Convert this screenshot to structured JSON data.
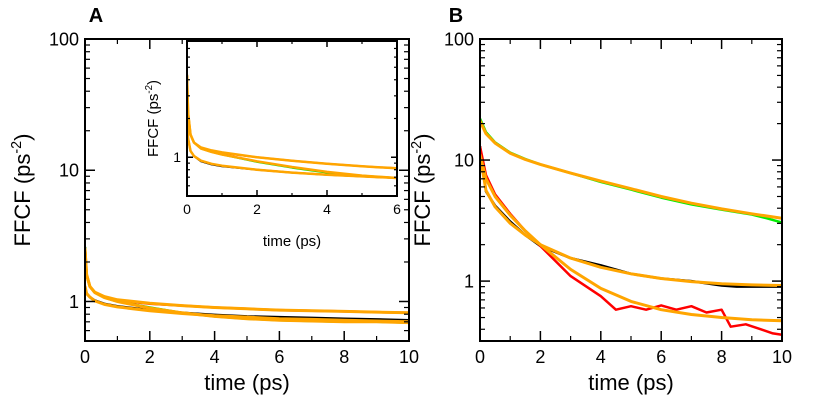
{
  "chart_data": [
    {
      "type": "line",
      "panel_label": "A",
      "xlabel": "time (ps)",
      "ylabel_main": "FFCF (ps",
      "ylabel_sup": "-2",
      "ylabel_close": ")",
      "yscale": "log",
      "xlim": [
        0,
        10
      ],
      "ylim": [
        0.5,
        100
      ],
      "xticks": [
        "0",
        "2",
        "4",
        "6",
        "8",
        "10"
      ],
      "yticks": [
        "1",
        "10",
        "100"
      ],
      "series": [
        {
          "color": "#ff0000",
          "x": [
            0,
            0.05,
            0.15,
            0.3,
            0.6,
            1,
            2,
            3,
            4,
            5,
            6,
            7,
            8,
            9,
            10
          ],
          "y": [
            2.6,
            1.6,
            1.3,
            1.17,
            1.08,
            1.02,
            0.96,
            0.93,
            0.9,
            0.88,
            0.86,
            0.85,
            0.84,
            0.83,
            0.82
          ]
        },
        {
          "color": "#00dd00",
          "x": [
            0,
            0.05,
            0.15,
            0.3,
            0.6,
            1,
            2,
            3,
            4,
            5,
            6,
            7,
            8,
            9,
            10
          ],
          "y": [
            2.6,
            1.6,
            1.3,
            1.17,
            1.07,
            1.0,
            0.9,
            0.82,
            0.77,
            0.74,
            0.72,
            0.71,
            0.7,
            0.7,
            0.69
          ]
        },
        {
          "color": "#000000",
          "x": [
            0,
            0.05,
            0.15,
            0.3,
            0.6,
            1,
            2,
            3,
            4,
            5,
            6,
            7,
            8,
            9,
            10
          ],
          "y": [
            1.3,
            1.15,
            1.08,
            1.02,
            0.96,
            0.92,
            0.86,
            0.82,
            0.79,
            0.77,
            0.76,
            0.75,
            0.74,
            0.73,
            0.72
          ]
        }
      ],
      "fits": [
        {
          "color": "#ffa500",
          "x": [
            0,
            0.05,
            0.15,
            0.3,
            0.6,
            1,
            2,
            3,
            4,
            5,
            6,
            7,
            8,
            9,
            10
          ],
          "y": [
            2.5,
            1.6,
            1.3,
            1.18,
            1.09,
            1.03,
            0.97,
            0.93,
            0.9,
            0.88,
            0.86,
            0.85,
            0.84,
            0.83,
            0.82
          ]
        },
        {
          "color": "#ffa500",
          "x": [
            0,
            0.05,
            0.15,
            0.3,
            0.6,
            1,
            2,
            3,
            4,
            5,
            6,
            7,
            8,
            9,
            10
          ],
          "y": [
            2.5,
            1.6,
            1.3,
            1.17,
            1.07,
            1.0,
            0.89,
            0.82,
            0.77,
            0.74,
            0.72,
            0.71,
            0.7,
            0.7,
            0.69
          ]
        },
        {
          "color": "#ffa500",
          "x": [
            0,
            0.05,
            0.15,
            0.3,
            0.6,
            1,
            2,
            3,
            4,
            5,
            6,
            7,
            8,
            9,
            10
          ],
          "y": [
            1.3,
            1.15,
            1.08,
            1.01,
            0.95,
            0.91,
            0.85,
            0.81,
            0.78,
            0.76,
            0.74,
            0.73,
            0.72,
            0.71,
            0.7
          ]
        }
      ]
    },
    {
      "type": "line",
      "panel_label": "",
      "inset": true,
      "xlabel": "time (ps)",
      "ylabel_main": "FFCF (ps",
      "ylabel_sup": "-2",
      "ylabel_close": ")",
      "yscale": "log",
      "xlim": [
        0,
        6
      ],
      "ylim": [
        0.5,
        8
      ],
      "xticks": [
        "0",
        "2",
        "4",
        "6"
      ],
      "yticks": [
        "1"
      ],
      "series": [
        {
          "color": "#ff0000",
          "x": [
            0,
            0.03,
            0.1,
            0.2,
            0.4,
            0.7,
            1,
            2,
            3,
            4,
            5,
            6
          ],
          "y": [
            4.5,
            2.2,
            1.5,
            1.3,
            1.18,
            1.12,
            1.08,
            1.0,
            0.94,
            0.89,
            0.85,
            0.82
          ]
        },
        {
          "color": "#00dd00",
          "x": [
            0,
            0.03,
            0.1,
            0.2,
            0.4,
            0.7,
            1,
            2,
            3,
            4,
            5,
            6
          ],
          "y": [
            4.5,
            2.2,
            1.5,
            1.3,
            1.17,
            1.1,
            1.05,
            0.92,
            0.83,
            0.76,
            0.72,
            0.69
          ]
        },
        {
          "color": "#000000",
          "x": [
            0,
            0.03,
            0.1,
            0.2,
            0.4,
            0.7,
            1,
            2,
            3,
            4,
            5,
            6
          ],
          "y": [
            2.0,
            1.4,
            1.12,
            1.02,
            0.93,
            0.88,
            0.85,
            0.8,
            0.76,
            0.73,
            0.71,
            0.69
          ]
        }
      ],
      "fits": [
        {
          "color": "#ffa500",
          "x": [
            0,
            0.03,
            0.1,
            0.2,
            0.4,
            0.7,
            1,
            2,
            3,
            4,
            5,
            6
          ],
          "y": [
            4.3,
            2.2,
            1.5,
            1.3,
            1.19,
            1.13,
            1.09,
            1.0,
            0.94,
            0.89,
            0.85,
            0.82
          ]
        },
        {
          "color": "#ffa500",
          "x": [
            0,
            0.03,
            0.1,
            0.2,
            0.4,
            0.7,
            1,
            2,
            3,
            4,
            5,
            6
          ],
          "y": [
            4.3,
            2.2,
            1.5,
            1.3,
            1.17,
            1.1,
            1.05,
            0.93,
            0.84,
            0.77,
            0.72,
            0.69
          ]
        },
        {
          "color": "#ffa500",
          "x": [
            0,
            0.03,
            0.1,
            0.2,
            0.4,
            0.7,
            1,
            2,
            3,
            4,
            5,
            6
          ],
          "y": [
            2.0,
            1.4,
            1.12,
            1.02,
            0.94,
            0.89,
            0.86,
            0.8,
            0.76,
            0.73,
            0.71,
            0.69
          ]
        }
      ]
    },
    {
      "type": "line",
      "panel_label": "B",
      "xlabel": "time (ps)",
      "ylabel_main": "FFCF (ps",
      "ylabel_sup": "-2",
      "ylabel_close": ")",
      "yscale": "log",
      "xlim": [
        0,
        10
      ],
      "ylim": [
        0.32,
        100
      ],
      "xticks": [
        "0",
        "2",
        "4",
        "6",
        "8",
        "10"
      ],
      "yticks": [
        "1",
        "10",
        "100"
      ],
      "series": [
        {
          "color": "#00ee00",
          "x": [
            0,
            0.2,
            0.5,
            1,
            1.5,
            2,
            3,
            4,
            5,
            6,
            7,
            8,
            9,
            9.5,
            10
          ],
          "y": [
            22,
            17,
            14,
            11.5,
            10.2,
            9.2,
            7.8,
            6.6,
            5.7,
            4.9,
            4.3,
            3.9,
            3.55,
            3.3,
            3.05
          ]
        },
        {
          "color": "#000000",
          "x": [
            0,
            0.2,
            0.5,
            1,
            1.5,
            2,
            3,
            4,
            5,
            6,
            7,
            8,
            8.5,
            9,
            10
          ],
          "y": [
            13,
            5.5,
            4.2,
            3.1,
            2.4,
            1.95,
            1.55,
            1.35,
            1.15,
            1.05,
            1.0,
            0.92,
            0.9,
            0.9,
            0.9
          ]
        },
        {
          "color": "#ff0000",
          "x": [
            0,
            0.2,
            0.5,
            1,
            1.5,
            2,
            3,
            4,
            4.5,
            5,
            5.5,
            6,
            6.5,
            7,
            7.5,
            8,
            8.3,
            8.8,
            9.3,
            9.7,
            10
          ],
          "y": [
            13,
            7.5,
            5.2,
            3.6,
            2.6,
            1.95,
            1.1,
            0.75,
            0.58,
            0.62,
            0.58,
            0.63,
            0.58,
            0.62,
            0.55,
            0.58,
            0.42,
            0.44,
            0.4,
            0.37,
            0.36
          ]
        }
      ],
      "fits": [
        {
          "color": "#ffa500",
          "x": [
            0,
            0.2,
            0.5,
            1,
            1.5,
            2,
            3,
            4,
            5,
            6,
            7,
            8,
            9,
            10
          ],
          "y": [
            21,
            16.5,
            13.8,
            11.4,
            10.1,
            9.2,
            7.8,
            6.7,
            5.8,
            5.0,
            4.4,
            3.95,
            3.6,
            3.3
          ]
        },
        {
          "color": "#ffa500",
          "x": [
            0,
            0.2,
            0.5,
            1,
            1.5,
            2,
            3,
            4,
            5,
            6,
            7,
            8,
            9,
            10
          ],
          "y": [
            11,
            5.6,
            4.1,
            3.0,
            2.4,
            2.0,
            1.55,
            1.3,
            1.15,
            1.05,
            0.99,
            0.95,
            0.93,
            0.92
          ]
        },
        {
          "color": "#ffa500",
          "x": [
            0,
            0.2,
            0.5,
            1,
            1.5,
            2,
            3,
            4,
            5,
            6,
            7,
            8,
            9,
            10
          ],
          "y": [
            11,
            7.0,
            5.0,
            3.5,
            2.6,
            2.0,
            1.25,
            0.87,
            0.68,
            0.58,
            0.53,
            0.5,
            0.48,
            0.47
          ]
        }
      ]
    }
  ]
}
